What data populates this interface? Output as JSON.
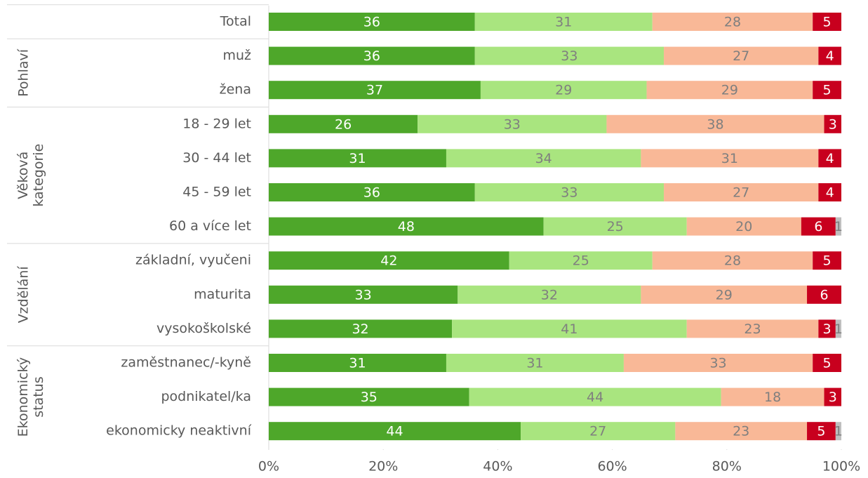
{
  "chart_data": {
    "type": "stacked-bar-horizontal",
    "categories": [
      "Total",
      "muž",
      "žena",
      "18 - 29 let",
      "30 - 44 let",
      "45 - 59 let",
      "60 a více let",
      "základní, vyučeni",
      "maturita",
      "vysokoškolské",
      "zaměstnanec/-kyně",
      "podnikatel/ka",
      "ekonomicky neaktivní"
    ],
    "category_groups": [
      null,
      "Pohlaví",
      "Pohlaví",
      "Věková kategorie",
      "Věková kategorie",
      "Věková kategorie",
      "Věková kategorie",
      "Vzdělání",
      "Vzdělání",
      "Vzdělání",
      "Ekonomický status",
      "Ekonomický status",
      "Ekonomický status"
    ],
    "series": [
      {
        "color": "#4ea72a",
        "label_color": "#ffffff",
        "values": [
          36,
          36,
          37,
          26,
          31,
          36,
          48,
          42,
          33,
          32,
          31,
          35,
          44
        ]
      },
      {
        "color": "#a9e57f",
        "label_color": "#7f7f7f",
        "values": [
          31,
          33,
          29,
          33,
          34,
          33,
          25,
          25,
          32,
          41,
          31,
          44,
          27
        ]
      },
      {
        "color": "#f9b897",
        "label_color": "#7f7f7f",
        "values": [
          28,
          27,
          29,
          38,
          31,
          27,
          20,
          28,
          29,
          23,
          33,
          18,
          23
        ]
      },
      {
        "color": "#c8001e",
        "label_color": "#ffffff",
        "values": [
          5,
          4,
          5,
          3,
          4,
          4,
          6,
          5,
          6,
          3,
          5,
          3,
          5
        ]
      },
      {
        "color": "#bfbfbf",
        "label_color": "#7f7f7f",
        "values": [
          null,
          null,
          null,
          null,
          null,
          null,
          1,
          null,
          null,
          1,
          null,
          null,
          1
        ]
      }
    ],
    "xlim": [
      0,
      100
    ],
    "xticks": [
      {
        "value": 0,
        "label": "0%"
      },
      {
        "value": 20,
        "label": "20%"
      },
      {
        "value": 40,
        "label": "40%"
      },
      {
        "value": 60,
        "label": "60%"
      },
      {
        "value": 80,
        "label": "80%"
      },
      {
        "value": 100,
        "label": "100%"
      }
    ]
  }
}
